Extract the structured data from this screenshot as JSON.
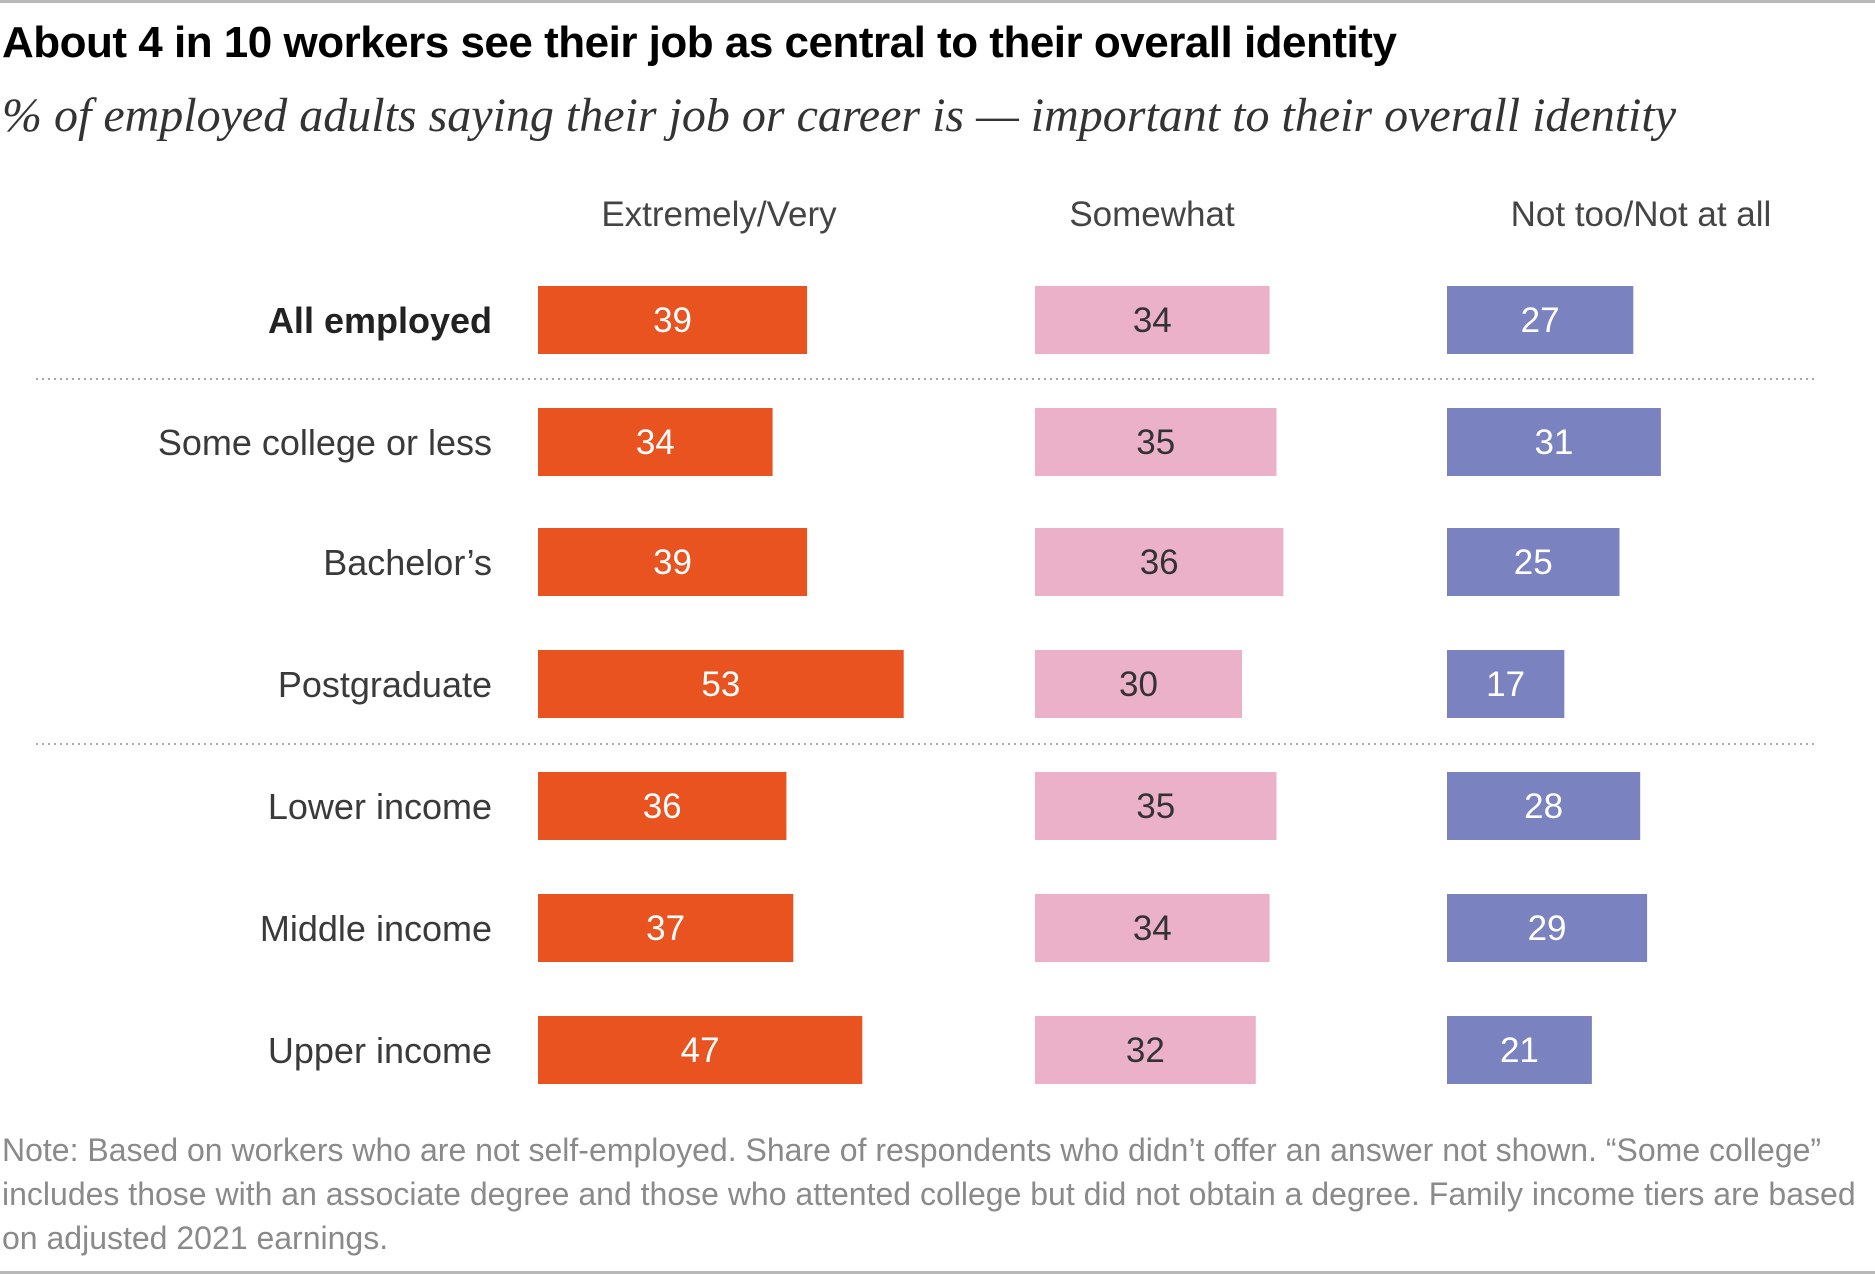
{
  "title": "About 4 in 10 workers see their job as central to their overall identity",
  "subtitle": "% of employed adults saying their job or career is — important to their overall identity",
  "note": "Note: Based on workers who are not self-employed. Share of respondents who didn’t offer an answer not shown. “Some college” includes those with an associate degree and those who attented college but did not obtain a degree. Family income tiers are based on adjusted 2021 earnings.",
  "colors": {
    "extremely_very": "#e8531f",
    "somewhat": "#ebb1c8",
    "not_too_not_at_all": "#7a83bf",
    "divider": "#a8a8a8"
  },
  "chart_data": {
    "type": "bar",
    "orientation": "horizontal",
    "layout": "small-multiples",
    "categories": [
      "All employed",
      "Some college or less",
      "Bachelor’s",
      "Postgraduate",
      "Lower income",
      "Middle income",
      "Upper income"
    ],
    "bold_categories": [
      "All employed"
    ],
    "dividers_after": [
      "All employed",
      "Postgraduate"
    ],
    "series": [
      {
        "name": "Extremely/Very",
        "values": [
          39,
          34,
          39,
          53,
          36,
          37,
          47
        ],
        "color": "#e8531f",
        "label_color": "#ffffff"
      },
      {
        "name": "Somewhat",
        "values": [
          34,
          35,
          36,
          30,
          35,
          34,
          32
        ],
        "color": "#ebb1c8",
        "label_color": "#333333"
      },
      {
        "name": "Not too/Not at all",
        "values": [
          27,
          31,
          25,
          17,
          28,
          29,
          21
        ],
        "color": "#7a83bf",
        "label_color": "#ffffff"
      }
    ],
    "unit": "%",
    "grid": false,
    "legend": "column headers"
  }
}
